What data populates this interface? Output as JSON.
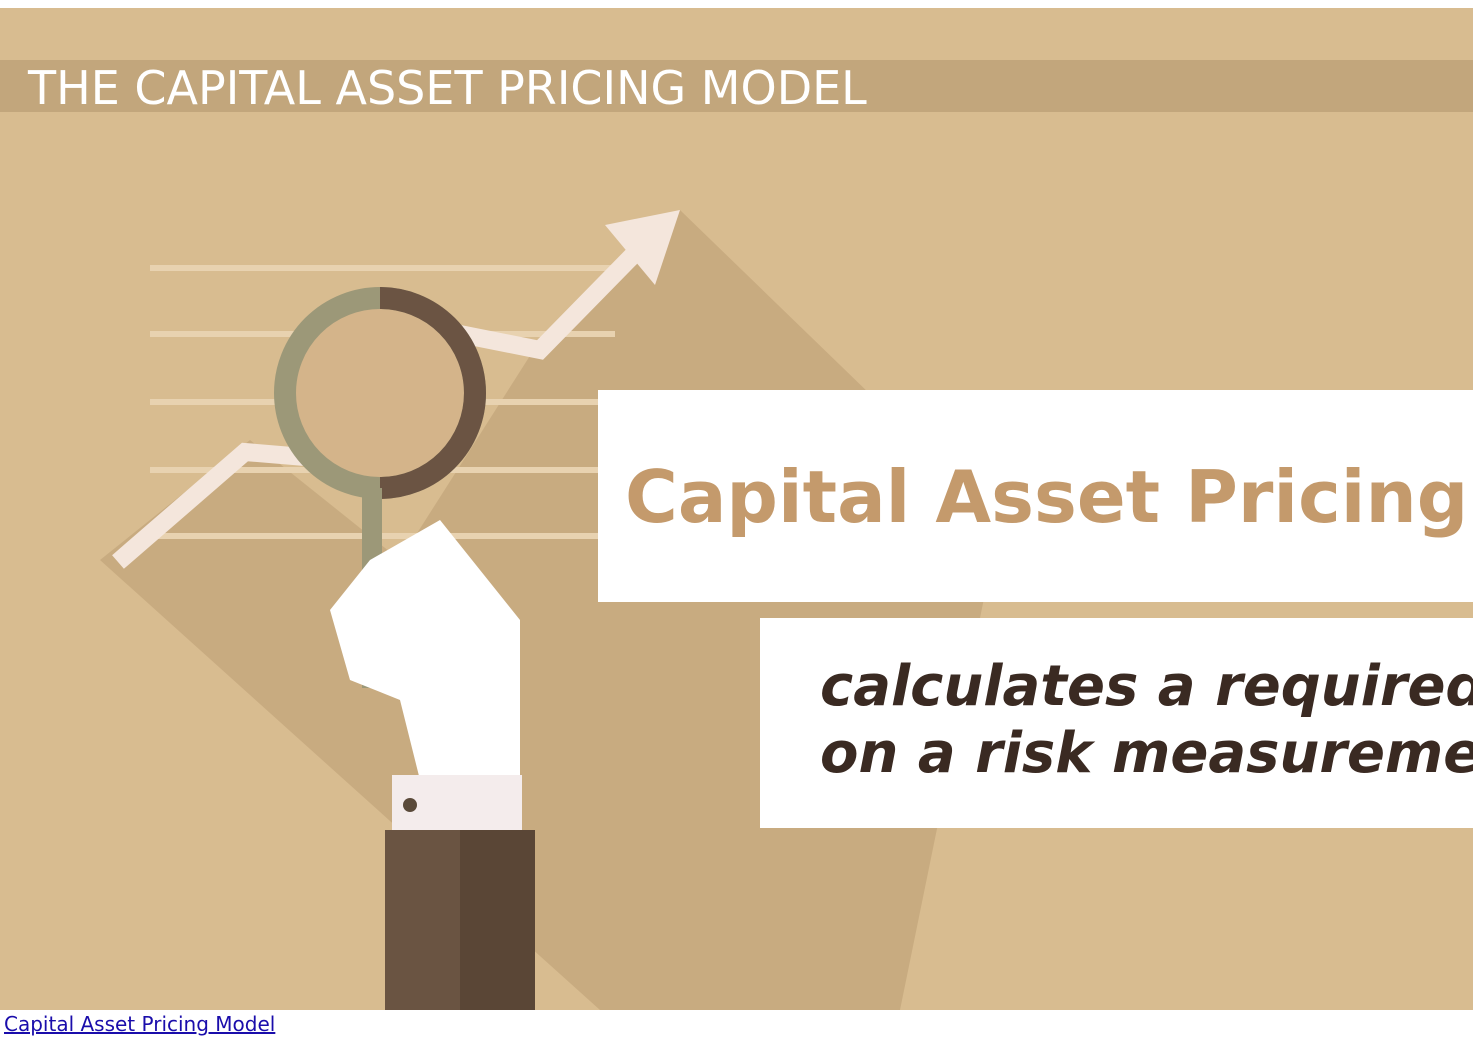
{
  "banner": {
    "title": "THE CAPITAL ASSET PRICING MODEL",
    "headline": "Capital Asset Pricing M",
    "caption_lines": [
      "calculates a required r",
      "on a risk measuremen"
    ]
  },
  "footer": {
    "link": "Capital Asset Pricing Model"
  }
}
